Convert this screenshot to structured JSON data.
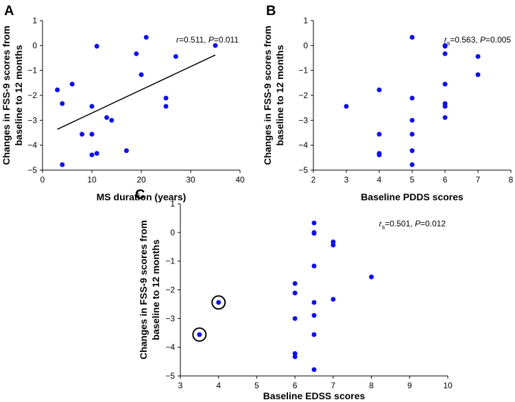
{
  "chart_data": [
    {
      "panel": "A",
      "type": "scatter",
      "xlabel": "MS duration (years)",
      "ylabel_lines": [
        "Changes in FSS-9 scores from",
        "baseline to 12 months"
      ],
      "xlim": [
        0,
        40
      ],
      "xticks": [
        0,
        10,
        20,
        30,
        40
      ],
      "ylim": [
        -5,
        1
      ],
      "yticks": [
        -5,
        -4,
        -3,
        -2,
        -1,
        0,
        1
      ],
      "annotation": {
        "stat": "r",
        "sub": "",
        "value": "=0.511, ",
        "p": "P",
        "pvalue": "=0.011"
      },
      "points": [
        [
          3,
          -1.78
        ],
        [
          4,
          -2.33
        ],
        [
          4,
          -4.78
        ],
        [
          6,
          -1.55
        ],
        [
          8,
          -3.56
        ],
        [
          10,
          -2.44
        ],
        [
          10,
          -3.56
        ],
        [
          10,
          -4.39
        ],
        [
          11,
          -4.33
        ],
        [
          11,
          -0.03
        ],
        [
          13,
          -2.89
        ],
        [
          14,
          -3.0
        ],
        [
          17,
          -4.22
        ],
        [
          19,
          -0.33
        ],
        [
          20,
          -1.17
        ],
        [
          21,
          0.33
        ],
        [
          25,
          -2.11
        ],
        [
          25,
          -2.44
        ],
        [
          27,
          -0.44
        ],
        [
          35,
          0.0
        ]
      ],
      "regression": {
        "x": [
          3,
          35
        ],
        "y": [
          -3.36,
          -0.38
        ]
      },
      "circled": []
    },
    {
      "panel": "B",
      "type": "scatter",
      "xlabel": "Baseline PDDS scores",
      "ylabel_lines": [
        "Changes in FSS-9 scores from",
        "baseline to 12 months"
      ],
      "xlim": [
        2,
        8
      ],
      "xticks": [
        2,
        3,
        4,
        5,
        6,
        7,
        8
      ],
      "ylim": [
        -5,
        1
      ],
      "yticks": [
        -5,
        -4,
        -3,
        -2,
        -1,
        0,
        1
      ],
      "annotation": {
        "stat": "r",
        "sub": "s",
        "value": "=0.563, ",
        "p": "P",
        "pvalue": "=0.005"
      },
      "points": [
        [
          3,
          -2.44
        ],
        [
          4,
          -1.78
        ],
        [
          4,
          -3.56
        ],
        [
          4,
          -4.33
        ],
        [
          4,
          -4.39
        ],
        [
          5,
          0.33
        ],
        [
          5,
          -2.11
        ],
        [
          5,
          -3.0
        ],
        [
          5,
          -3.56
        ],
        [
          5,
          -4.22
        ],
        [
          5,
          -4.78
        ],
        [
          6,
          0.0
        ],
        [
          6,
          -0.03
        ],
        [
          6,
          -0.33
        ],
        [
          6,
          -1.55
        ],
        [
          6,
          -2.33
        ],
        [
          6,
          -2.44
        ],
        [
          6,
          -2.89
        ],
        [
          7,
          -0.44
        ],
        [
          7,
          -1.17
        ]
      ],
      "regression": null,
      "circled": []
    },
    {
      "panel": "C",
      "type": "scatter",
      "xlabel": "Baseline EDSS scores",
      "ylabel_lines": [
        "Changes in FSS-9 scores from",
        "baseline to 12 months"
      ],
      "xlim": [
        3,
        10
      ],
      "xticks": [
        3,
        4,
        5,
        6,
        7,
        8,
        9,
        10
      ],
      "ylim": [
        -5,
        1
      ],
      "yticks": [
        -5,
        -4,
        -3,
        -2,
        -1,
        0,
        1
      ],
      "annotation": {
        "stat": "r",
        "sub": "s",
        "value": "=0.501, ",
        "p": "P",
        "pvalue": "=0.012"
      },
      "points": [
        [
          3.5,
          -3.56
        ],
        [
          4,
          -2.44
        ],
        [
          6,
          -1.78
        ],
        [
          6,
          -2.11
        ],
        [
          6,
          -3.0
        ],
        [
          6,
          -4.22
        ],
        [
          6,
          -4.33
        ],
        [
          6.5,
          0.33
        ],
        [
          6.5,
          0.0
        ],
        [
          6.5,
          -0.03
        ],
        [
          6.5,
          -1.17
        ],
        [
          6.5,
          -2.44
        ],
        [
          6.5,
          -2.89
        ],
        [
          6.5,
          -3.56
        ],
        [
          6.5,
          -4.78
        ],
        [
          7,
          -0.33
        ],
        [
          7,
          -0.44
        ],
        [
          7,
          -2.33
        ],
        [
          8,
          -1.55
        ]
      ],
      "regression": null,
      "circled": [
        [
          3.5,
          -3.56
        ],
        [
          4,
          -2.44
        ]
      ]
    }
  ],
  "colors": {
    "point": "#1010ee",
    "line": "#000000"
  }
}
